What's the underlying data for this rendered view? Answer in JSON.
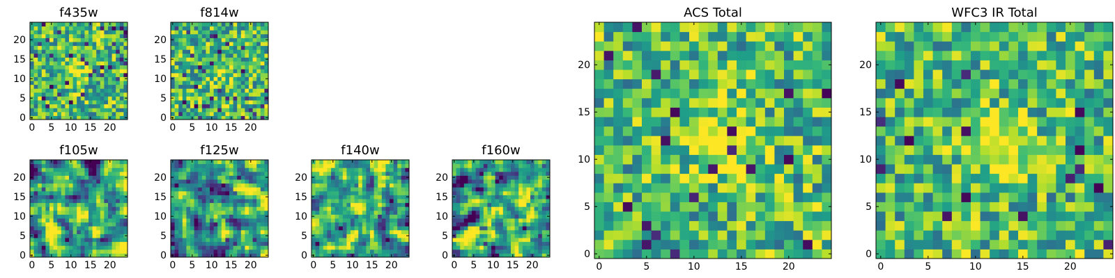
{
  "chart_data": [
    {
      "type": "heatmap",
      "title": "f435w",
      "grid_size": 25,
      "xlim": [
        0,
        24
      ],
      "ylim": [
        0,
        24
      ],
      "xticks": [
        0,
        5,
        10,
        15,
        20
      ],
      "yticks": [
        0,
        5,
        10,
        15,
        20
      ],
      "colormap": "viridis",
      "values": "pixel noise field, 25x25, mostly mid-to-high intensity with scattered low pixels"
    },
    {
      "type": "heatmap",
      "title": "f814w",
      "grid_size": 25,
      "xlim": [
        0,
        24
      ],
      "ylim": [
        0,
        24
      ],
      "xticks": [
        0,
        5,
        10,
        15,
        20
      ],
      "yticks": [
        0,
        5,
        10,
        15,
        20
      ],
      "colormap": "viridis",
      "values": "pixel noise field, 25x25, faint bright blob near center"
    },
    {
      "type": "heatmap",
      "title": "f105w",
      "grid_size": 25,
      "xlim": [
        0,
        24
      ],
      "ylim": [
        0,
        24
      ],
      "xticks": [
        0,
        5,
        10,
        15,
        20
      ],
      "yticks": [
        0,
        5,
        10,
        15,
        20
      ],
      "colormap": "viridis",
      "values": "smoothed noise field, 25x25, bright source near center"
    },
    {
      "type": "heatmap",
      "title": "f125w",
      "grid_size": 25,
      "xlim": [
        0,
        24
      ],
      "ylim": [
        0,
        24
      ],
      "xticks": [
        0,
        5,
        10,
        15,
        20
      ],
      "yticks": [
        0,
        5,
        10,
        15,
        20
      ],
      "colormap": "viridis",
      "values": "smoothed noise field, 25x25, bright source near center"
    },
    {
      "type": "heatmap",
      "title": "f140w",
      "grid_size": 25,
      "xlim": [
        0,
        24
      ],
      "ylim": [
        0,
        24
      ],
      "xticks": [
        0,
        5,
        10,
        15,
        20
      ],
      "yticks": [
        0,
        5,
        10,
        15,
        20
      ],
      "colormap": "viridis",
      "values": "smoothed noise field, 25x25, bright source near center"
    },
    {
      "type": "heatmap",
      "title": "f160w",
      "grid_size": 25,
      "xlim": [
        0,
        24
      ],
      "ylim": [
        0,
        24
      ],
      "xticks": [
        0,
        5,
        10,
        15,
        20
      ],
      "yticks": [
        0,
        5,
        10,
        15,
        20
      ],
      "colormap": "viridis",
      "values": "smoothed noise field, 25x25, bright source near center"
    },
    {
      "type": "heatmap",
      "title": "ACS Total",
      "grid_size": 25,
      "xlim": [
        0,
        24
      ],
      "ylim": [
        0,
        24
      ],
      "xticks": [
        0,
        5,
        10,
        15,
        20
      ],
      "yticks": [
        0,
        5,
        10,
        15,
        20
      ],
      "colormap": "viridis",
      "values": "pixel noise field, 25x25, bright source centered near (13, 12)"
    },
    {
      "type": "heatmap",
      "title": "WFC3 IR Total",
      "grid_size": 25,
      "xlim": [
        0,
        24
      ],
      "ylim": [
        0,
        24
      ],
      "xticks": [
        0,
        5,
        10,
        15,
        20
      ],
      "yticks": [
        0,
        5,
        10,
        15,
        20
      ],
      "colormap": "viridis",
      "values": "pixel noise field, 25x25, bright source centered near (12, 12)"
    }
  ]
}
